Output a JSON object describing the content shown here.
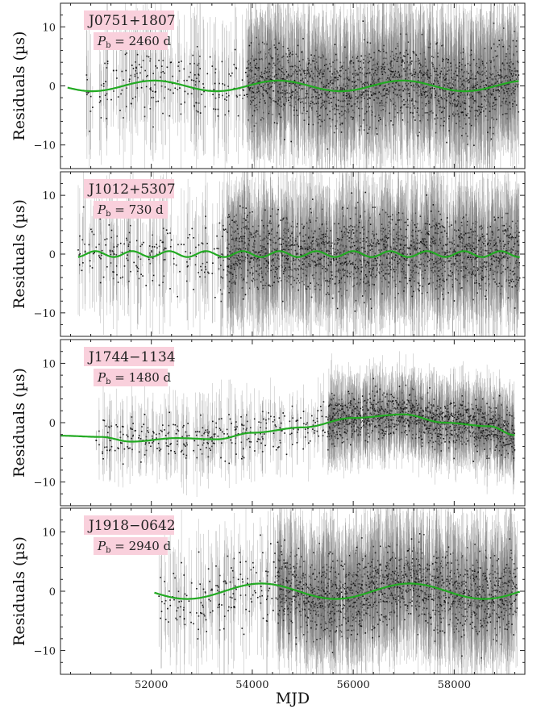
{
  "chart_data": {
    "type": "scatter",
    "xlabel": "MJD",
    "ylabel": "Residuals (µs)",
    "xlim": [
      50200,
      59400
    ],
    "ylim": [
      -14,
      14
    ],
    "xticks": [
      52000,
      54000,
      56000,
      58000
    ],
    "yticks": [
      -10,
      0,
      10
    ],
    "panels": [
      {
        "pulsar": "J0751+1807",
        "pb_text": "= 2460 d",
        "model": {
          "period_days": 2460,
          "amplitude_us": 0.9,
          "offset_us": 0.0,
          "phase_ref_mjd": 52060,
          "x_range": [
            50340,
            59280
          ]
        },
        "data": {
          "x_range": [
            50700,
            59280
          ],
          "dense_from_mjd": 53900,
          "scatter_us": 3.0,
          "error_us": 7.0
        }
      },
      {
        "pulsar": "J1012+5307",
        "pb_text": "= 730 d",
        "model": {
          "period_days": 730,
          "amplitude_us": 0.5,
          "offset_us": 0.0,
          "phase_ref_mjd": 51620,
          "x_range": [
            50550,
            59300
          ]
        },
        "data": {
          "x_range": [
            50550,
            59300
          ],
          "dense_from_mjd": 53500,
          "scatter_us": 3.0,
          "error_us": 6.5
        }
      },
      {
        "pulsar": "J1744−1134",
        "pb_text": "= 1480 d",
        "model": {
          "knots_x": [
            50200,
            51000,
            51600,
            52500,
            53300,
            54000,
            55000,
            56000,
            57000,
            57800,
            58700,
            59200
          ],
          "knots_y": [
            -2.2,
            -2.4,
            -3.2,
            -2.6,
            -2.8,
            -1.7,
            -0.8,
            0.8,
            1.4,
            0.0,
            -0.6,
            -2.1
          ],
          "x_range": [
            50200,
            59200
          ]
        },
        "data": {
          "x_range": [
            50900,
            59200
          ],
          "dense_from_mjd": 55500,
          "scatter_us": 1.8,
          "error_us": 4.0
        }
      },
      {
        "pulsar": "J1918−0642",
        "pb_text": "= 2940 d",
        "model": {
          "period_days": 2940,
          "amplitude_us": 1.3,
          "offset_us": 0.0,
          "phase_ref_mjd": 54180,
          "x_range": [
            52060,
            59300
          ]
        },
        "data": {
          "x_range": [
            52150,
            59250
          ],
          "dense_from_mjd": 54500,
          "scatter_us": 3.0,
          "error_us": 6.5
        }
      }
    ],
    "colors": {
      "model_line": "#22aa22",
      "points": "#111111",
      "error_bars": "#777777",
      "label_box": "#f9d0dc"
    }
  }
}
